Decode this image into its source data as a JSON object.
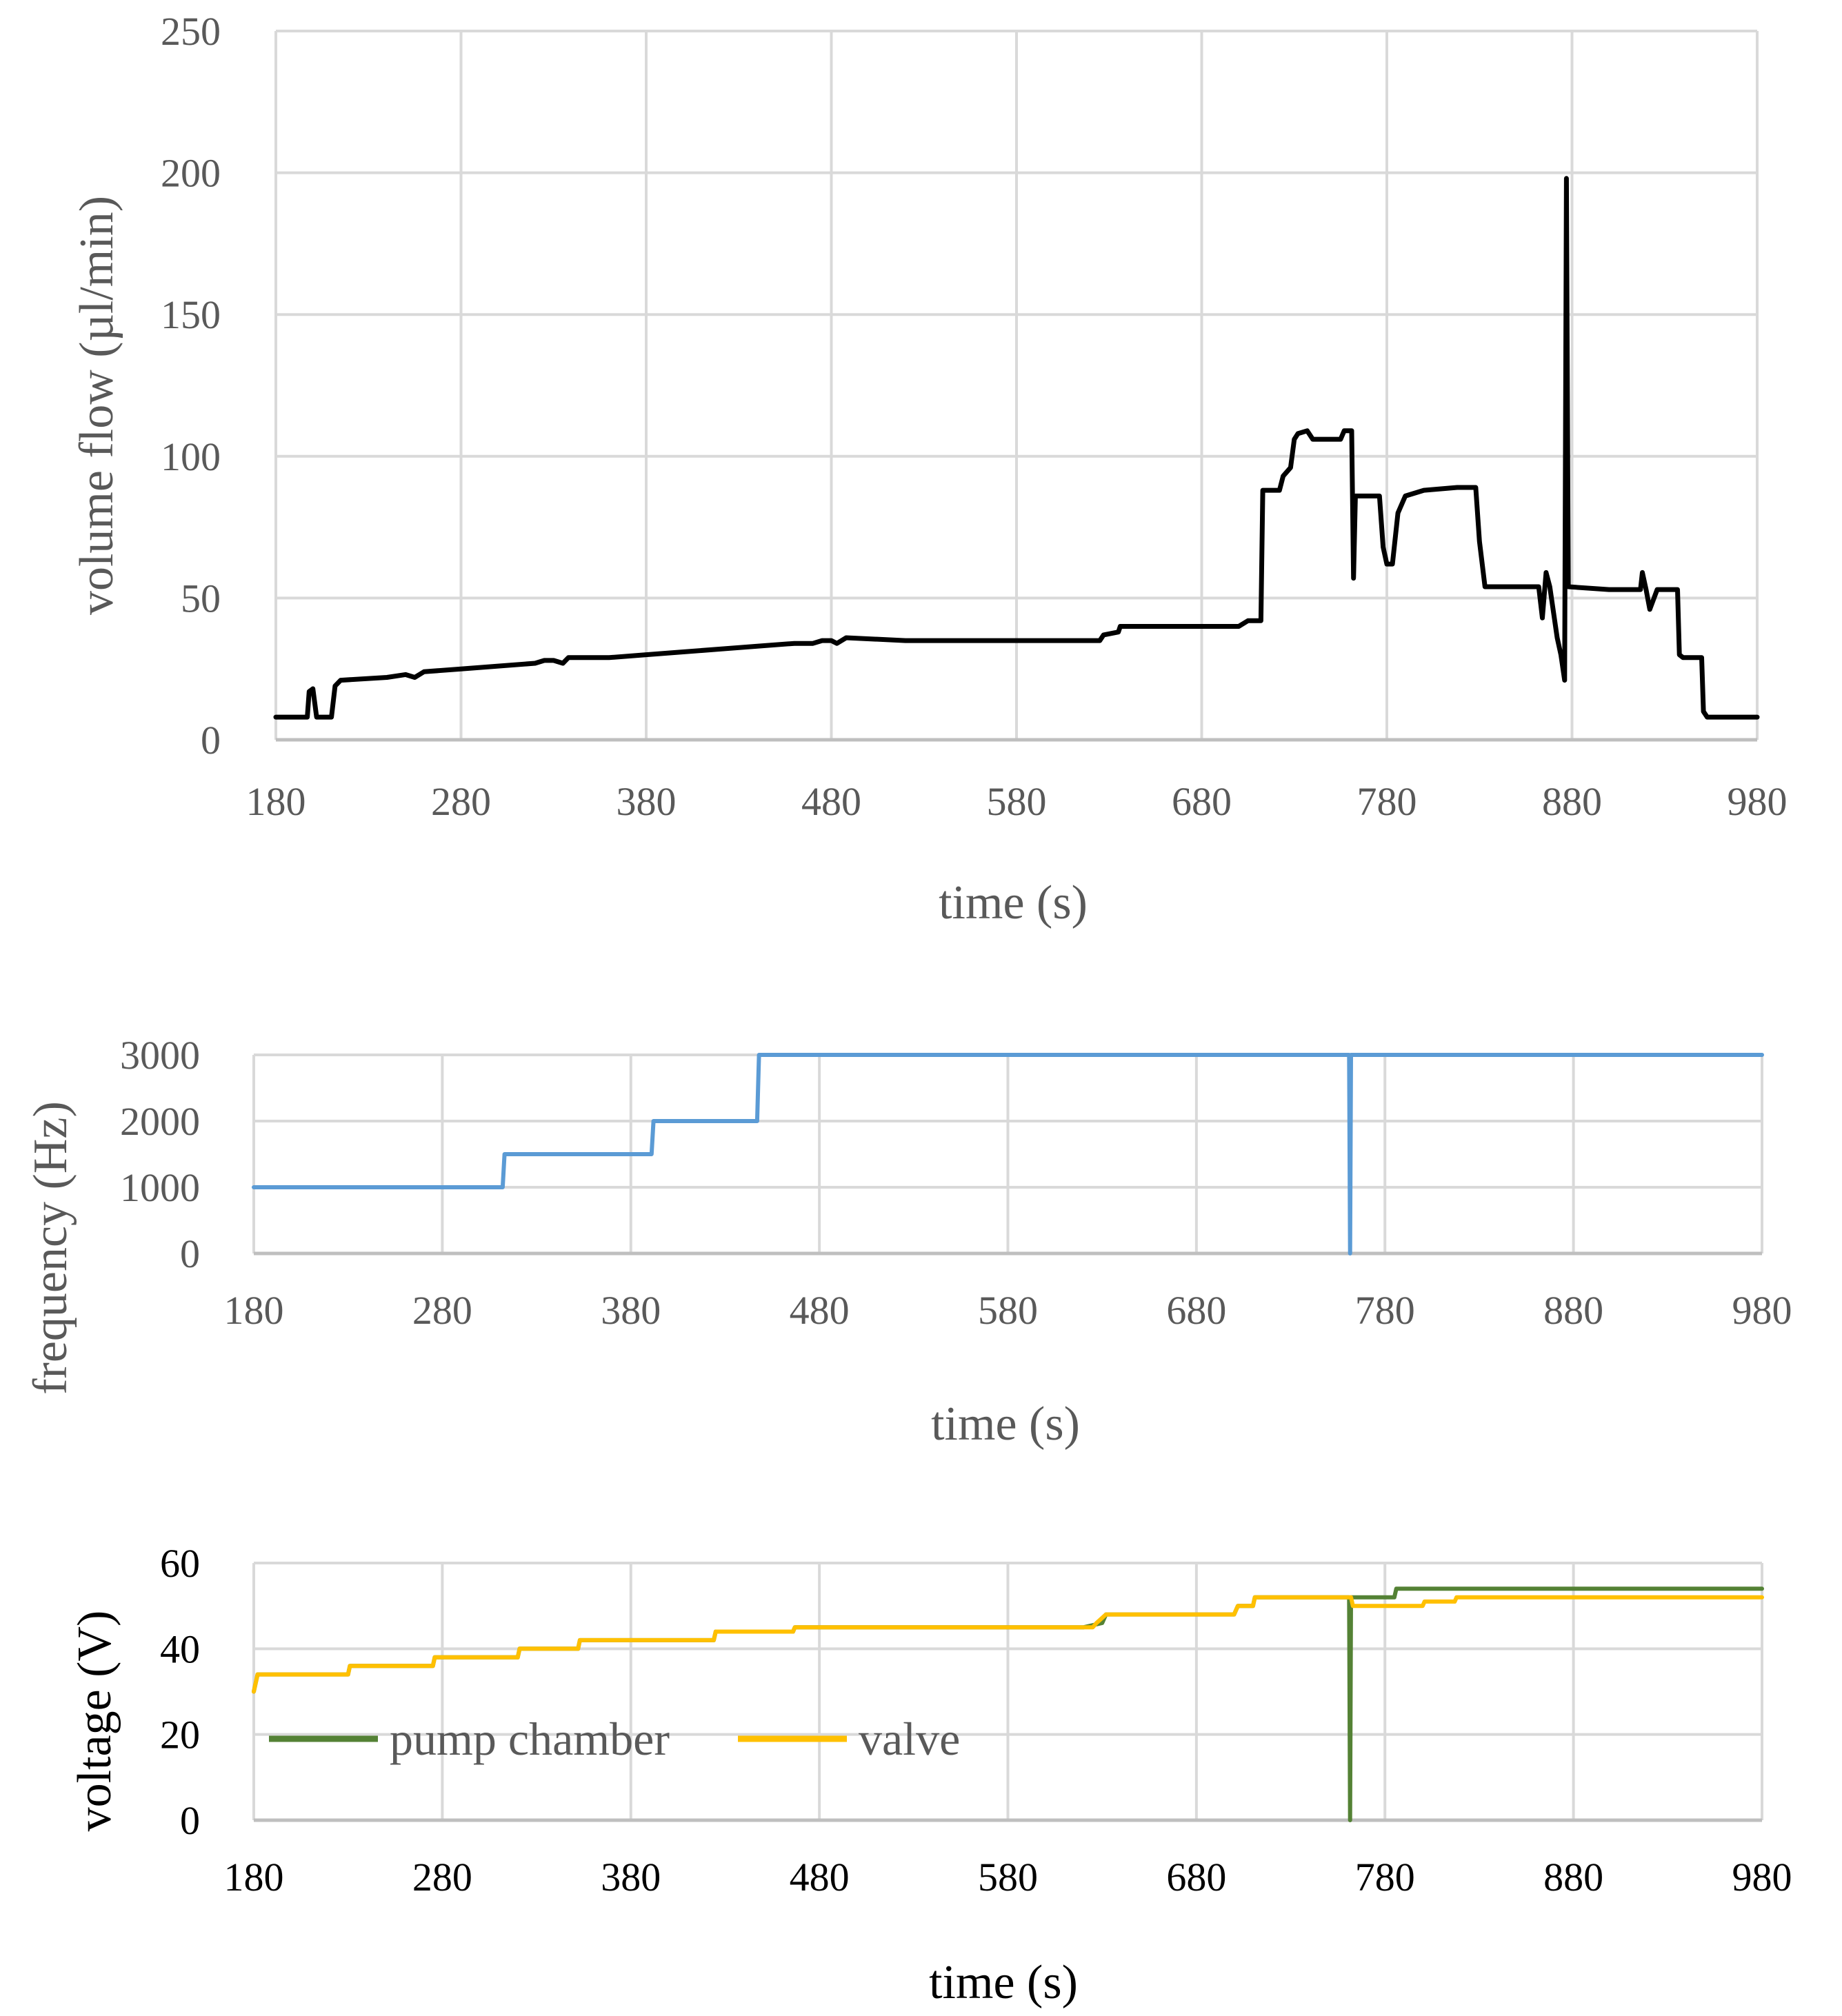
{
  "chart_data": [
    {
      "type": "line",
      "title": "",
      "xlabel": "time (s)",
      "ylabel": "volume flow (µl/min)",
      "xlim": [
        180,
        980
      ],
      "ylim": [
        0,
        250
      ],
      "xticks": [
        "180",
        "280",
        "380",
        "480",
        "580",
        "680",
        "780",
        "880",
        "980"
      ],
      "yticks": [
        "0",
        "50",
        "100",
        "150",
        "200",
        "250"
      ],
      "grid": true,
      "series": [
        {
          "name": "volume flow",
          "color": "#000000",
          "points": [
            [
              180,
              8
            ],
            [
              197,
              8
            ],
            [
              198,
              17
            ],
            [
              200,
              18
            ],
            [
              202,
              8
            ],
            [
              210,
              8
            ],
            [
              212,
              19
            ],
            [
              215,
              21
            ],
            [
              240,
              22
            ],
            [
              250,
              23
            ],
            [
              255,
              22
            ],
            [
              260,
              24
            ],
            [
              280,
              25
            ],
            [
              300,
              26
            ],
            [
              320,
              27
            ],
            [
              325,
              28
            ],
            [
              330,
              28
            ],
            [
              335,
              27
            ],
            [
              338,
              29
            ],
            [
              360,
              29
            ],
            [
              380,
              30
            ],
            [
              400,
              31
            ],
            [
              420,
              32
            ],
            [
              440,
              33
            ],
            [
              460,
              34
            ],
            [
              470,
              34
            ],
            [
              475,
              35
            ],
            [
              480,
              35
            ],
            [
              483,
              34
            ],
            [
              488,
              36
            ],
            [
              520,
              35
            ],
            [
              580,
              35
            ],
            [
              620,
              35
            ],
            [
              625,
              35
            ],
            [
              627,
              37
            ],
            [
              635,
              38
            ],
            [
              636,
              40
            ],
            [
              660,
              40
            ],
            [
              700,
              40
            ],
            [
              705,
              42
            ],
            [
              712,
              42
            ],
            [
              713,
              88
            ],
            [
              722,
              88
            ],
            [
              724,
              93
            ],
            [
              728,
              96
            ],
            [
              730,
              106
            ],
            [
              732,
              108
            ],
            [
              737,
              109
            ],
            [
              740,
              106
            ],
            [
              755,
              106
            ],
            [
              757,
              109
            ],
            [
              761,
              109
            ],
            [
              762,
              57
            ],
            [
              763,
              86
            ],
            [
              776,
              86
            ],
            [
              778,
              68
            ],
            [
              780,
              62
            ],
            [
              783,
              62
            ],
            [
              786,
              80
            ],
            [
              790,
              86
            ],
            [
              800,
              88
            ],
            [
              818,
              89
            ],
            [
              828,
              89
            ],
            [
              830,
              70
            ],
            [
              833,
              54
            ],
            [
              862,
              54
            ],
            [
              864,
              43
            ],
            [
              866,
              59
            ],
            [
              868,
              54
            ],
            [
              872,
              36
            ],
            [
              874,
              30
            ],
            [
              876,
              21
            ],
            [
              877,
              198
            ],
            [
              878,
              54
            ],
            [
              900,
              53
            ],
            [
              917,
              53
            ],
            [
              918,
              59
            ],
            [
              920,
              53
            ],
            [
              922,
              46
            ],
            [
              926,
              53
            ],
            [
              937,
              53
            ],
            [
              938,
              30
            ],
            [
              940,
              29
            ],
            [
              950,
              29
            ],
            [
              951,
              10
            ],
            [
              953,
              8
            ],
            [
              980,
              8
            ]
          ]
        }
      ]
    },
    {
      "type": "line",
      "title": "",
      "xlabel": "time (s)",
      "ylabel": "frequency (Hz)",
      "xlim": [
        180,
        980
      ],
      "ylim": [
        0,
        3000
      ],
      "xticks": [
        "180",
        "280",
        "380",
        "480",
        "580",
        "680",
        "780",
        "880",
        "980"
      ],
      "yticks": [
        "0",
        "1000",
        "2000",
        "3000"
      ],
      "grid": true,
      "series": [
        {
          "name": "frequency",
          "color": "#5B9BD5",
          "points": [
            [
              180,
              1000
            ],
            [
              312,
              1000
            ],
            [
              313,
              1500
            ],
            [
              391,
              1500
            ],
            [
              392,
              2000
            ],
            [
              447,
              2000
            ],
            [
              448,
              3000
            ],
            [
              761,
              3000
            ],
            [
              761.5,
              0
            ],
            [
              762,
              3000
            ],
            [
              980,
              3000
            ]
          ]
        }
      ]
    },
    {
      "type": "line",
      "title": "",
      "xlabel": "time (s)",
      "ylabel": "voltage (V)",
      "xlim": [
        180,
        980
      ],
      "ylim": [
        0,
        60
      ],
      "xticks": [
        "180",
        "280",
        "380",
        "480",
        "580",
        "680",
        "780",
        "880",
        "980"
      ],
      "yticks": [
        "0",
        "20",
        "40",
        "60"
      ],
      "grid": true,
      "legend": "inside left, middle",
      "series": [
        {
          "name": "pump chamber",
          "color": "#548235",
          "points": [
            [
              180,
              30
            ],
            [
              182,
              34
            ],
            [
              230,
              34
            ],
            [
              231,
              36
            ],
            [
              275,
              36
            ],
            [
              276,
              38
            ],
            [
              320,
              38
            ],
            [
              321,
              40
            ],
            [
              352,
              40
            ],
            [
              353,
              42
            ],
            [
              424,
              42
            ],
            [
              425,
              44
            ],
            [
              466,
              44
            ],
            [
              467,
              45
            ],
            [
              620,
              45
            ],
            [
              630,
              46
            ],
            [
              632,
              48
            ],
            [
              700,
              48
            ],
            [
              702,
              50
            ],
            [
              710,
              50
            ],
            [
              711,
              52
            ],
            [
              761,
              52
            ],
            [
              761.5,
              0
            ],
            [
              762,
              52
            ],
            [
              785,
              52
            ],
            [
              786,
              54
            ],
            [
              980,
              54
            ]
          ]
        },
        {
          "name": "valve",
          "color": "#FFC000",
          "points": [
            [
              180,
              30
            ],
            [
              182,
              34
            ],
            [
              230,
              34
            ],
            [
              231,
              36
            ],
            [
              275,
              36
            ],
            [
              276,
              38
            ],
            [
              320,
              38
            ],
            [
              321,
              40
            ],
            [
              352,
              40
            ],
            [
              353,
              42
            ],
            [
              424,
              42
            ],
            [
              425,
              44
            ],
            [
              466,
              44
            ],
            [
              467,
              45
            ],
            [
              625,
              45
            ],
            [
              627,
              46
            ],
            [
              632,
              48
            ],
            [
              700,
              48
            ],
            [
              702,
              50
            ],
            [
              710,
              50
            ],
            [
              711,
              52
            ],
            [
              762,
              52
            ],
            [
              763,
              50
            ],
            [
              800,
              50
            ],
            [
              801,
              51
            ],
            [
              817,
              51
            ],
            [
              818,
              52
            ],
            [
              980,
              52
            ]
          ]
        }
      ]
    }
  ]
}
